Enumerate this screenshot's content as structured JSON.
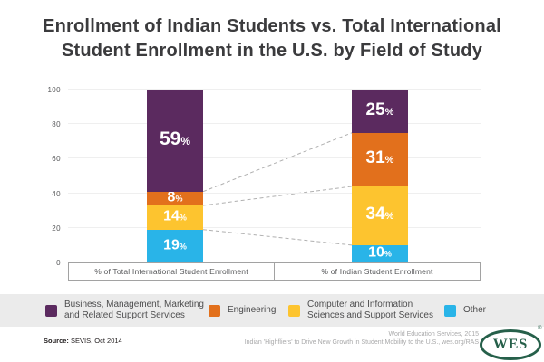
{
  "title": {
    "line1": "Enrollment of Indian Students vs. Total International",
    "line2": "Student Enrollment in the U.S. by Field of Study"
  },
  "chart_data": {
    "type": "bar",
    "stacked": true,
    "title": "Enrollment of Indian Students vs. Total International Student Enrollment in the U.S. by Field of Study",
    "categories": [
      "% of Total International Student Enrollment",
      "% of Indian Student Enrollment"
    ],
    "series": [
      {
        "name": "Business, Management, Marketing and Related Support Services",
        "color": "#5b2a5f",
        "values": [
          59,
          25
        ]
      },
      {
        "name": "Engineering",
        "color": "#e2701c",
        "values": [
          8,
          31
        ]
      },
      {
        "name": "Computer and Information Sciences and Support Services",
        "color": "#fdc42f",
        "values": [
          14,
          34
        ]
      },
      {
        "name": "Other",
        "color": "#29b4e8",
        "values": [
          19,
          10
        ]
      }
    ],
    "unit": "%",
    "ylim": [
      0,
      100
    ],
    "yticks": [
      0,
      20,
      40,
      60,
      80,
      100
    ],
    "grid": true,
    "legend_position": "bottom",
    "connector_lines": true
  },
  "legend": {
    "items": [
      {
        "line1": "Business, Management, Marketing",
        "line2": "and Related Support Services",
        "color": "#5b2a5f"
      },
      {
        "line1": "Engineering",
        "line2": "",
        "color": "#e2701c"
      },
      {
        "line1": "Computer and Information",
        "line2": "Sciences and Support Services",
        "color": "#fdc42f"
      },
      {
        "line1": "Other",
        "line2": "",
        "color": "#29b4e8"
      }
    ]
  },
  "footer": {
    "source_label": "Source:",
    "source_value": " SEVIS, Oct 2014",
    "credit_line1": "World Education Services, 2015",
    "credit_line2": "Indian 'Highfliers' to Drive New Growth in Student Mobility to the U.S., wes.org/RAS",
    "logo_text": "WES",
    "logo_reg": "®"
  }
}
